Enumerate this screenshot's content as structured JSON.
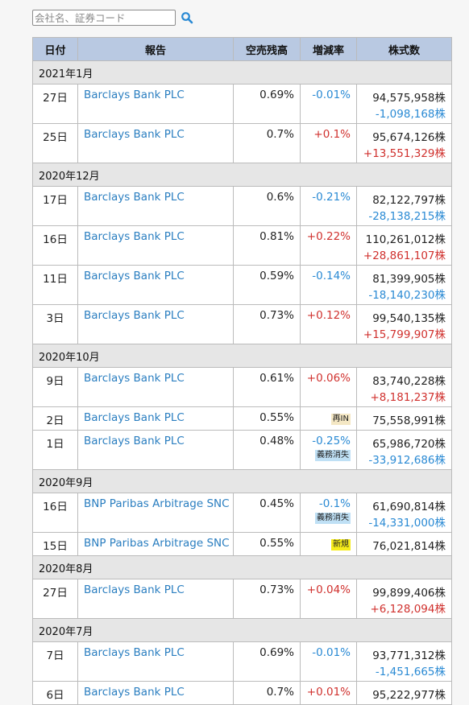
{
  "search": {
    "placeholder": "会社名、証券コード",
    "button_icon": "magnifier-icon",
    "icon_color": "#2a8ad4"
  },
  "table": {
    "headers": [
      "日付",
      "報告",
      "空売残高",
      "増減率",
      "株式数"
    ]
  },
  "groups": [
    {
      "month": "2021年1月",
      "rows": [
        {
          "day": "27日",
          "name": "Barclays Bank PLC",
          "ratio": "0.69%",
          "change": "-0.01%",
          "change_dir": "neg",
          "shares": "94,575,958株",
          "diff": "-1,098,168株",
          "diff_dir": "neg"
        },
        {
          "day": "25日",
          "name": "Barclays Bank PLC",
          "ratio": "0.7%",
          "change": "+0.1%",
          "change_dir": "pos",
          "shares": "95,674,126株",
          "diff": "+13,551,329株",
          "diff_dir": "pos"
        }
      ]
    },
    {
      "month": "2020年12月",
      "rows": [
        {
          "day": "17日",
          "name": "Barclays Bank PLC",
          "ratio": "0.6%",
          "change": "-0.21%",
          "change_dir": "neg",
          "shares": "82,122,797株",
          "diff": "-28,138,215株",
          "diff_dir": "neg"
        },
        {
          "day": "16日",
          "name": "Barclays Bank PLC",
          "ratio": "0.81%",
          "change": "+0.22%",
          "change_dir": "pos",
          "shares": "110,261,012株",
          "diff": "+28,861,107株",
          "diff_dir": "pos"
        },
        {
          "day": "11日",
          "name": "Barclays Bank PLC",
          "ratio": "0.59%",
          "change": "-0.14%",
          "change_dir": "neg",
          "shares": "81,399,905株",
          "diff": "-18,140,230株",
          "diff_dir": "neg"
        },
        {
          "day": "3日",
          "name": "Barclays Bank PLC",
          "ratio": "0.73%",
          "change": "+0.12%",
          "change_dir": "pos",
          "shares": "99,540,135株",
          "diff": "+15,799,907株",
          "diff_dir": "pos"
        }
      ]
    },
    {
      "month": "2020年10月",
      "rows": [
        {
          "day": "9日",
          "name": "Barclays Bank PLC",
          "ratio": "0.61%",
          "change": "+0.06%",
          "change_dir": "pos",
          "shares": "83,740,228株",
          "diff": "+8,181,237株",
          "diff_dir": "pos"
        },
        {
          "day": "2日",
          "name": "Barclays Bank PLC",
          "ratio": "0.55%",
          "badge": "再IN",
          "badge_type": "reentry",
          "shares": "75,558,991株"
        },
        {
          "day": "1日",
          "name": "Barclays Bank PLC",
          "ratio": "0.48%",
          "change": "-0.25%",
          "change_dir": "neg",
          "badge": "義務消失",
          "badge_type": "obligation",
          "shares": "65,986,720株",
          "diff": "-33,912,686株",
          "diff_dir": "neg"
        }
      ]
    },
    {
      "month": "2020年9月",
      "rows": [
        {
          "day": "16日",
          "name": "BNP Paribas Arbitrage SNC",
          "ratio": "0.45%",
          "change": "-0.1%",
          "change_dir": "neg",
          "badge": "義務消失",
          "badge_type": "obligation",
          "shares": "61,690,814株",
          "diff": "-14,331,000株",
          "diff_dir": "neg"
        },
        {
          "day": "15日",
          "name": "BNP Paribas Arbitrage SNC",
          "ratio": "0.55%",
          "badge": "新規",
          "badge_type": "new",
          "shares": "76,021,814株"
        }
      ]
    },
    {
      "month": "2020年8月",
      "rows": [
        {
          "day": "27日",
          "name": "Barclays Bank PLC",
          "ratio": "0.73%",
          "change": "+0.04%",
          "change_dir": "pos",
          "shares": "99,899,406株",
          "diff": "+6,128,094株",
          "diff_dir": "pos"
        }
      ]
    },
    {
      "month": "2020年7月",
      "rows": [
        {
          "day": "7日",
          "name": "Barclays Bank PLC",
          "ratio": "0.69%",
          "change": "-0.01%",
          "change_dir": "neg",
          "shares": "93,771,312株",
          "diff": "-1,451,665株",
          "diff_dir": "neg"
        },
        {
          "day": "6日",
          "name": "Barclays Bank PLC",
          "ratio": "0.7%",
          "change": "+0.01%",
          "change_dir": "pos",
          "shares": "95,222,977株",
          "diff": "",
          "diff_dir": "pos"
        }
      ]
    }
  ],
  "colors": {
    "header_bg": "#b9c9e2",
    "month_bg": "#e6e6e6",
    "link": "#2a7ec0",
    "negative": "#2a8ad4",
    "positive": "#d0312e",
    "badge_new": "#f6ec1a",
    "badge_obligation": "#bfe0f5",
    "badge_reentry": "#f4e7c4"
  }
}
